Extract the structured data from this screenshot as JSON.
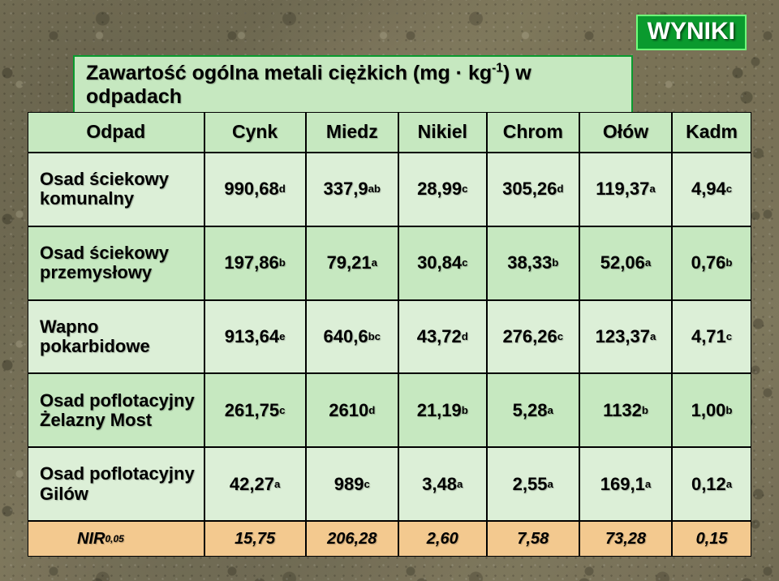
{
  "badge": {
    "text": "WYNIKI",
    "text_color": "#ffffff",
    "background_color": "#0a9a2e",
    "border_color": "#6fff7a"
  },
  "title": {
    "html": "Zawartość ogólna metali ciężkich (mg · kg<sup>-1</sup>) w odpadach",
    "background_color": "#c6e8c0",
    "border_color": "#0a9a2e"
  },
  "table": {
    "header_bg": "#c6e8c0",
    "row_bg_even": "#dcefd7",
    "row_bg_odd": "#c6e8c0",
    "nir_bg": "#f3c98f",
    "border_color": "#000000",
    "columns": [
      "Odpad",
      "Cynk",
      "Miedz",
      "Nikiel",
      "Chrom",
      "Ołów",
      "Kadm"
    ],
    "rows": [
      {
        "label": "Osad ściekowy komunalny",
        "values": [
          {
            "num": "990,68",
            "sup": "d"
          },
          {
            "num": "337,9",
            "sup": "ab"
          },
          {
            "num": "28,99",
            "sup": "c"
          },
          {
            "num": "305,26",
            "sup": "d"
          },
          {
            "num": "119,37",
            "sup": "a"
          },
          {
            "num": "4,94",
            "sup": "c"
          }
        ]
      },
      {
        "label": "Osad ściekowy przemysłowy",
        "values": [
          {
            "num": "197,86",
            "sup": "b"
          },
          {
            "num": "79,21",
            "sup": "a"
          },
          {
            "num": "30,84",
            "sup": "c"
          },
          {
            "num": "38,33",
            "sup": "b"
          },
          {
            "num": "52,06",
            "sup": "a"
          },
          {
            "num": "0,76",
            "sup": "b"
          }
        ]
      },
      {
        "label": "Wapno pokarbidowe",
        "values": [
          {
            "num": "913,64",
            "sup": "e"
          },
          {
            "num": "640,6",
            "sup": "bc"
          },
          {
            "num": "43,72",
            "sup": "d"
          },
          {
            "num": "276,26",
            "sup": "c"
          },
          {
            "num": "123,37",
            "sup": "a"
          },
          {
            "num": "4,71",
            "sup": "c"
          }
        ]
      },
      {
        "label": "Osad poflotacyjny Żelazny Most",
        "values": [
          {
            "num": "261,75",
            "sup": "c"
          },
          {
            "num": "2610",
            "sup": "d"
          },
          {
            "num": "21,19",
            "sup": "b"
          },
          {
            "num": "5,28",
            "sup": "a"
          },
          {
            "num": "1132",
            "sup": "b"
          },
          {
            "num": "1,00",
            "sup": "b"
          }
        ]
      },
      {
        "label": "Osad poflotacyjny Gilów",
        "values": [
          {
            "num": "42,27",
            "sup": "a"
          },
          {
            "num": "989",
            "sup": "c"
          },
          {
            "num": "3,48",
            "sup": "a"
          },
          {
            "num": "2,55",
            "sup": "a"
          },
          {
            "num": "169,1",
            "sup": "a"
          },
          {
            "num": "0,12",
            "sup": "a"
          }
        ]
      }
    ],
    "nir": {
      "label_html": "NIR<sub>0,05</sub>",
      "values": [
        "15,75",
        "206,28",
        "2,60",
        "7,58",
        "73,28",
        "0,15"
      ]
    }
  }
}
